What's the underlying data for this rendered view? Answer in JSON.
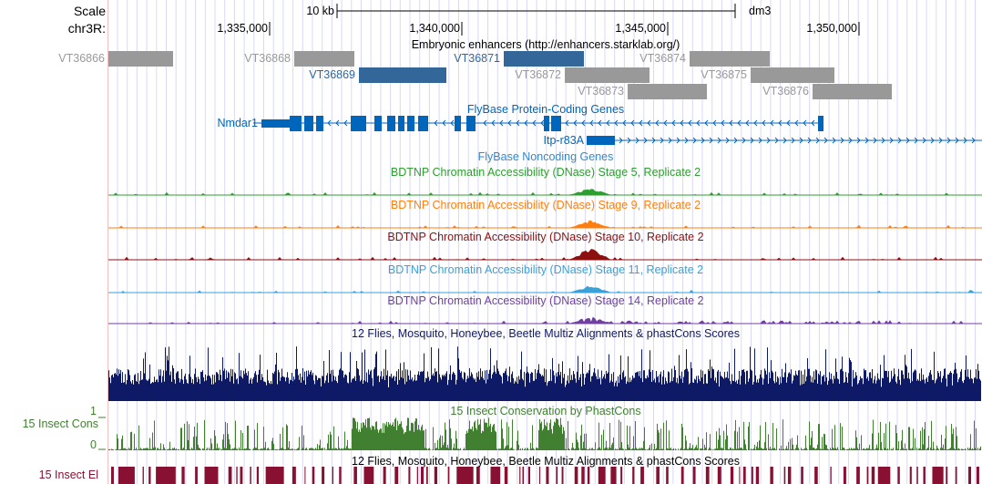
{
  "ruler": {
    "scale_label": "Scale",
    "chrom_label": "chr3R:",
    "scale_bar": "10 kb",
    "assembly": "dm3",
    "ticks": [
      "1,335,000",
      "1,340,000",
      "1,345,000",
      "1,350,000"
    ]
  },
  "enhancers": {
    "title": "Embryonic enhancers (http://enhancers.starklab.org/)",
    "items": [
      {
        "name": "VT36866",
        "color": "#999999"
      },
      {
        "name": "VT36868",
        "color": "#999999"
      },
      {
        "name": "VT36869",
        "color": "#336699"
      },
      {
        "name": "VT36871",
        "color": "#336699"
      },
      {
        "name": "VT36872",
        "color": "#999999"
      },
      {
        "name": "VT36873",
        "color": "#999999"
      },
      {
        "name": "VT36874",
        "color": "#999999"
      },
      {
        "name": "VT36875",
        "color": "#999999"
      },
      {
        "name": "VT36876",
        "color": "#999999"
      }
    ]
  },
  "genes": {
    "title": "FlyBase Protein-Coding Genes",
    "items": [
      {
        "name": "Nmdar1",
        "strand": "-"
      },
      {
        "name": "Itp-r83A",
        "strand": "+"
      }
    ],
    "color": "#0066bb"
  },
  "noncoding": {
    "title": "FlyBase Noncoding Genes"
  },
  "dnase": [
    {
      "title": "BDTNP Chromatin Accessibility (DNase) Stage 5, Replicate 2",
      "color": "#2ca02c"
    },
    {
      "title": "BDTNP Chromatin Accessibility (DNase) Stage 9, Replicate 2",
      "color": "#ff7f0e"
    },
    {
      "title": "BDTNP Chromatin Accessibility (DNase) Stage 10, Replicate 2",
      "color": "#8c1010"
    },
    {
      "title": "BDTNP Chromatin Accessibility (DNase) Stage 11, Replicate 2",
      "color": "#3aa0d8"
    },
    {
      "title": "BDTNP Chromatin Accessibility (DNase) Stage 14, Replicate 2",
      "color": "#7040a0"
    }
  ],
  "multiz": {
    "title": "12 Flies, Mosquito, Honeybee, Beetle Multiz Alignments & phastCons Scores",
    "color": "#0f1a66"
  },
  "phastcons": {
    "title": "15 Insect Conservation by PhastCons",
    "label": "15 Insect Cons",
    "ymax": "1",
    "ymin": "0",
    "color": "#408030"
  },
  "elements": {
    "title": "12 Flies, Mosquito, Honeybee, Beetle Multiz Alignments & phastCons Scores",
    "label": "15 Insect El",
    "color": "#881133"
  }
}
